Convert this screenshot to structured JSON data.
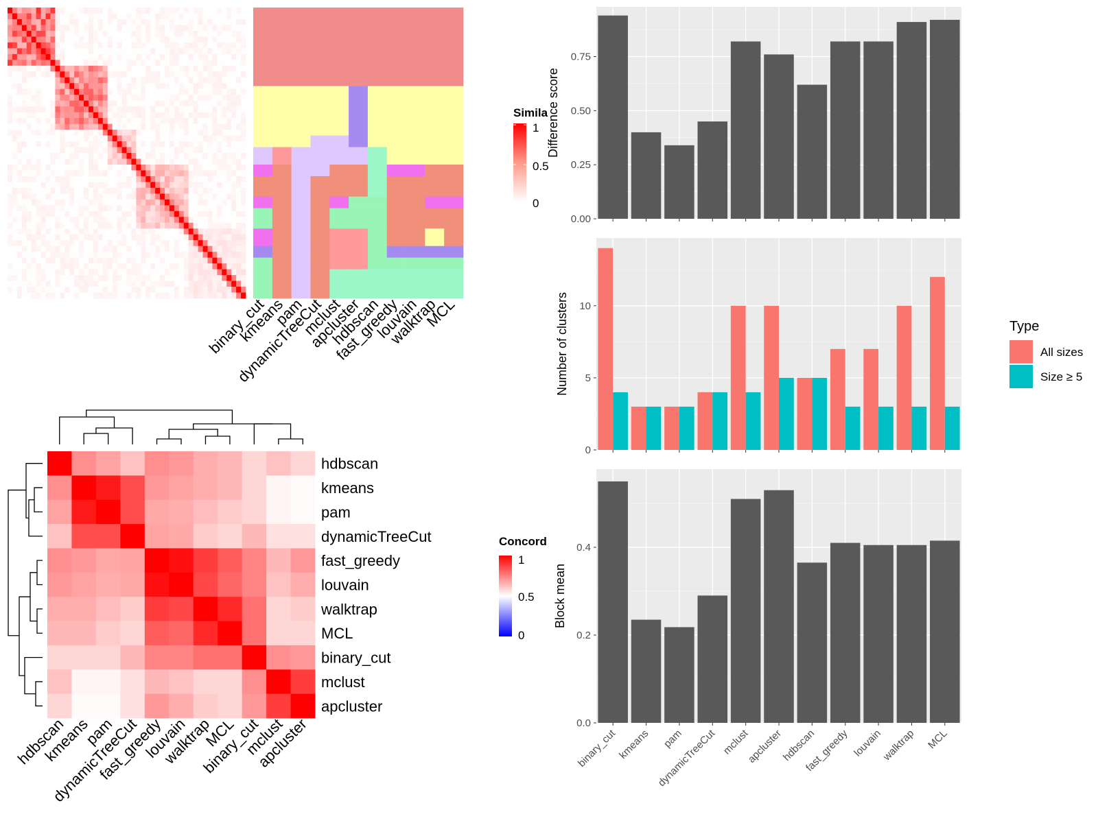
{
  "method_order_heatmap_top": [
    "binary_cut",
    "kmeans",
    "pam",
    "dynamicTreeCut",
    "mclust",
    "apcluster",
    "hdbscan",
    "fast_greedy",
    "louvain",
    "walktrap",
    "MCL"
  ],
  "similarity_legend": {
    "title": "Simila",
    "ticks": [
      "1",
      "0.5",
      "0"
    ],
    "colors": [
      "#ff0000",
      "#ffffff"
    ]
  },
  "concordance_legend": {
    "title": "Concord",
    "ticks": [
      "1",
      "0.5",
      "0"
    ],
    "colors": [
      "#ff0000",
      "#ffffff",
      "#0000ff"
    ]
  },
  "concordance_labels": [
    "hdbscan",
    "kmeans",
    "pam",
    "dynamicTreeCut",
    "fast_greedy",
    "louvain",
    "walktrap",
    "MCL",
    "binary_cut",
    "mclust",
    "apcluster"
  ],
  "chart_data": [
    {
      "type": "heatmap",
      "name": "similarity",
      "note": "similarity matrix with cluster-assignment annotation columns",
      "column_labels": [
        "binary_cut",
        "kmeans",
        "pam",
        "dynamicTreeCut",
        "mclust",
        "apcluster",
        "hdbscan",
        "fast_greedy",
        "louvain",
        "walktrap",
        "MCL"
      ],
      "colorbar_range": [
        0,
        1
      ]
    },
    {
      "type": "heatmap",
      "name": "concordance",
      "rows": [
        "hdbscan",
        "kmeans",
        "pam",
        "dynamicTreeCut",
        "fast_greedy",
        "louvain",
        "walktrap",
        "MCL",
        "binary_cut",
        "mclust",
        "apcluster"
      ],
      "columns": [
        "hdbscan",
        "kmeans",
        "pam",
        "dynamicTreeCut",
        "fast_greedy",
        "louvain",
        "walktrap",
        "MCL",
        "binary_cut",
        "mclust",
        "apcluster"
      ],
      "values": [
        [
          1.0,
          0.72,
          0.68,
          0.62,
          0.72,
          0.7,
          0.66,
          0.64,
          0.58,
          0.62,
          0.58
        ],
        [
          0.72,
          1.0,
          0.95,
          0.85,
          0.7,
          0.68,
          0.66,
          0.64,
          0.58,
          0.52,
          0.51
        ],
        [
          0.68,
          0.95,
          1.0,
          0.85,
          0.67,
          0.66,
          0.63,
          0.6,
          0.58,
          0.52,
          0.51
        ],
        [
          0.62,
          0.85,
          0.85,
          1.0,
          0.68,
          0.67,
          0.6,
          0.58,
          0.64,
          0.56,
          0.56
        ],
        [
          0.72,
          0.7,
          0.67,
          0.68,
          1.0,
          0.97,
          0.88,
          0.82,
          0.74,
          0.64,
          0.7
        ],
        [
          0.7,
          0.68,
          0.66,
          0.67,
          0.97,
          1.0,
          0.86,
          0.8,
          0.74,
          0.62,
          0.66
        ],
        [
          0.66,
          0.66,
          0.63,
          0.6,
          0.88,
          0.86,
          1.0,
          0.92,
          0.78,
          0.58,
          0.6
        ],
        [
          0.64,
          0.64,
          0.6,
          0.58,
          0.82,
          0.8,
          0.92,
          1.0,
          0.78,
          0.58,
          0.58
        ],
        [
          0.58,
          0.58,
          0.58,
          0.64,
          0.74,
          0.74,
          0.78,
          0.78,
          1.0,
          0.72,
          0.7
        ],
        [
          0.62,
          0.52,
          0.52,
          0.56,
          0.64,
          0.62,
          0.58,
          0.58,
          0.72,
          1.0,
          0.88
        ],
        [
          0.58,
          0.51,
          0.51,
          0.56,
          0.7,
          0.66,
          0.6,
          0.58,
          0.7,
          0.88,
          1.0
        ]
      ],
      "colorbar_range": [
        0,
        1
      ]
    },
    {
      "type": "bar",
      "name": "difference",
      "categories": [
        "binary_cut",
        "kmeans",
        "pam",
        "dynamicTreeCut",
        "mclust",
        "apcluster",
        "hdbscan",
        "fast_greedy",
        "louvain",
        "walktrap",
        "MCL"
      ],
      "values": [
        0.94,
        0.4,
        0.34,
        0.45,
        0.82,
        0.76,
        0.62,
        0.82,
        0.82,
        0.91,
        0.92
      ],
      "ylabel": "Difference score",
      "ylim": [
        0,
        0.98
      ],
      "yticks": [
        "0.00",
        "0.25",
        "0.50",
        "0.75"
      ],
      "color": "#595959"
    },
    {
      "type": "bar",
      "name": "clusters",
      "categories": [
        "binary_cut",
        "kmeans",
        "pam",
        "dynamicTreeCut",
        "mclust",
        "apcluster",
        "hdbscan",
        "fast_greedy",
        "louvain",
        "walktrap",
        "MCL"
      ],
      "series": [
        {
          "name": "All sizes",
          "values": [
            14,
            3,
            3,
            4,
            10,
            10,
            5,
            7,
            7,
            10,
            12
          ],
          "color": "#f8766d"
        },
        {
          "name": "Size ≥ 5",
          "values": [
            4,
            3,
            3,
            4,
            4,
            5,
            5,
            3,
            3,
            3,
            3
          ],
          "color": "#00bfc4"
        }
      ],
      "ylabel": "Number of clusters",
      "ylim": [
        0,
        14.7
      ],
      "yticks": [
        "0",
        "5",
        "10"
      ],
      "legend_title": "Type",
      "legend_position": "right"
    },
    {
      "type": "bar",
      "name": "blockmean",
      "categories": [
        "binary_cut",
        "kmeans",
        "pam",
        "dynamicTreeCut",
        "mclust",
        "apcluster",
        "hdbscan",
        "fast_greedy",
        "louvain",
        "walktrap",
        "MCL"
      ],
      "values": [
        0.55,
        0.235,
        0.218,
        0.29,
        0.51,
        0.53,
        0.365,
        0.41,
        0.405,
        0.405,
        0.415
      ],
      "ylabel": "Block mean",
      "ylim": [
        0,
        0.578
      ],
      "yticks": [
        "0.0",
        "0.2",
        "0.4"
      ],
      "color": "#595959"
    }
  ]
}
